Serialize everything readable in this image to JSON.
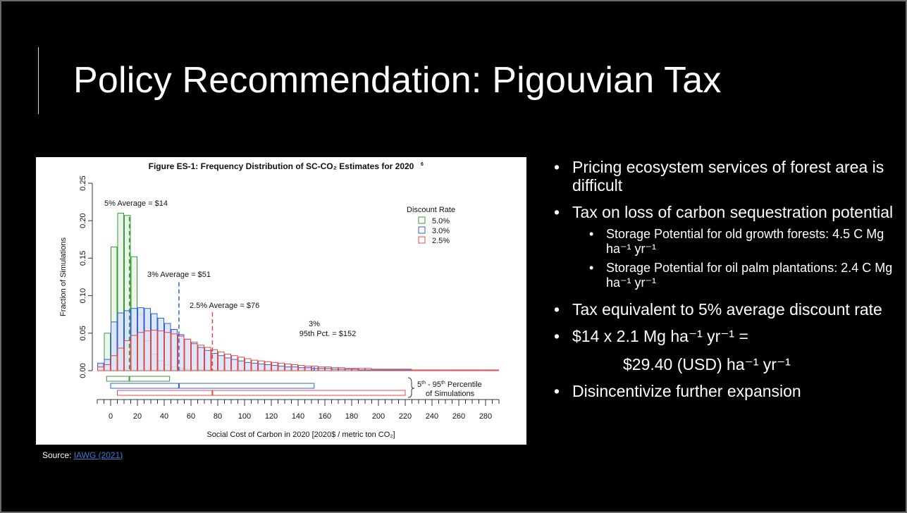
{
  "slide": {
    "title": "Policy Recommendation: Pigouvian Tax",
    "source_label": "Source: ",
    "source_link": "IAWG (2021)"
  },
  "bullets": {
    "b1": "Pricing ecosystem services of forest area is difficult",
    "b2": "Tax on loss of carbon sequestration potential",
    "b2a": "Storage Potential for old growth forests: 4.5 C Mg ha⁻¹ yr⁻¹",
    "b2b": "Storage Potential for oil palm plantations: 2.4 C  Mg ha⁻¹ yr⁻¹",
    "b3": "Tax equivalent to 5% average discount rate",
    "b4_line1": "$14 x 2.1 Mg ha⁻¹ yr⁻¹ =",
    "b4_line2": "$29.40 (USD) ha⁻¹ yr⁻¹",
    "b5": "Disincentivize further expansion"
  },
  "chart_data": {
    "type": "bar",
    "title": "Figure ES-1: Frequency Distribution of SC-CO₂ Estimates for 2020",
    "title_sup": "6",
    "xlabel": "Social Cost of Carbon in 2020 [2020$ / metric ton CO₂]",
    "ylabel": "Fraction of Simulations",
    "xlim": [
      -10,
      290
    ],
    "ylim": [
      0,
      0.25
    ],
    "x_ticks": [
      "0",
      "20",
      "40",
      "60",
      "80",
      "100",
      "120",
      "140",
      "160",
      "180",
      "200",
      "220",
      "240",
      "260",
      "280"
    ],
    "y_ticks": [
      "0.00",
      "0.05",
      "0.10",
      "0.15",
      "0.20",
      "0.25"
    ],
    "legend_title": "Discount Rate",
    "legend_position": "top-right",
    "bin_starts": [
      -10,
      -5,
      0,
      5,
      10,
      15,
      20,
      25,
      30,
      35,
      40,
      45,
      50,
      55,
      60,
      65,
      70,
      75,
      80,
      85,
      90,
      95,
      100,
      105,
      110,
      115,
      120,
      125,
      130,
      135,
      140,
      145,
      150,
      155,
      160,
      165,
      170,
      175,
      180,
      185,
      190,
      195,
      200,
      205,
      210,
      215,
      220,
      225,
      230,
      235,
      240,
      245,
      250,
      255,
      260,
      265,
      270,
      275,
      280,
      285
    ],
    "series": [
      {
        "name": "5.0%",
        "color": "#3a9a3a",
        "fill": "#e8f5e8",
        "values": [
          0.008,
          0.05,
          0.165,
          0.21,
          0.207,
          0.152,
          0.075,
          0.04,
          0.022,
          0.013,
          0.008,
          0.005,
          0.003,
          0.002,
          0.001,
          0.001,
          0.001,
          0,
          0,
          0,
          0,
          0,
          0,
          0,
          0,
          0,
          0,
          0,
          0,
          0,
          0,
          0,
          0,
          0,
          0,
          0,
          0,
          0,
          0,
          0,
          0,
          0,
          0,
          0,
          0,
          0,
          0,
          0,
          0,
          0,
          0,
          0,
          0,
          0,
          0,
          0,
          0,
          0,
          0,
          0
        ]
      },
      {
        "name": "3.0%",
        "color": "#3060d8",
        "fill": "#d8e2f8",
        "values": [
          0.01,
          0.015,
          0.065,
          0.077,
          0.08,
          0.083,
          0.084,
          0.083,
          0.076,
          0.07,
          0.063,
          0.055,
          0.048,
          0.042,
          0.036,
          0.031,
          0.027,
          0.023,
          0.02,
          0.017,
          0.015,
          0.013,
          0.011,
          0.01,
          0.009,
          0.008,
          0.007,
          0.006,
          0.005,
          0.005,
          0.004,
          0.004,
          0.003,
          0.003,
          0.003,
          0.002,
          0.002,
          0.002,
          0.002,
          0.001,
          0.001,
          0.001,
          0.001,
          0.001,
          0.001,
          0.001,
          0.001,
          0,
          0,
          0,
          0,
          0,
          0,
          0,
          0,
          0,
          0,
          0,
          0,
          0
        ]
      },
      {
        "name": "2.5%",
        "color": "#e04848",
        "fill": "none",
        "values": [
          0.005,
          0.008,
          0.02,
          0.03,
          0.04,
          0.047,
          0.051,
          0.053,
          0.054,
          0.053,
          0.051,
          0.049,
          0.046,
          0.042,
          0.038,
          0.034,
          0.031,
          0.028,
          0.025,
          0.022,
          0.02,
          0.018,
          0.016,
          0.014,
          0.013,
          0.012,
          0.011,
          0.01,
          0.009,
          0.008,
          0.007,
          0.006,
          0.006,
          0.005,
          0.005,
          0.004,
          0.004,
          0.003,
          0.003,
          0.003,
          0.003,
          0.002,
          0.002,
          0.002,
          0.002,
          0.002,
          0.002,
          0.001,
          0.001,
          0.001,
          0.001,
          0.001,
          0.001,
          0.001,
          0.001,
          0.001,
          0.001,
          0.001,
          0.001,
          0.001
        ]
      }
    ],
    "vlines": [
      {
        "x": 14,
        "color": "#3a9a3a",
        "label": "5% Average = $14"
      },
      {
        "x": 51,
        "color": "#3060d8",
        "label": "3% Average = $51"
      },
      {
        "x": 76,
        "color": "#e04848",
        "label": "2.5% Average = $76"
      },
      {
        "x": 152,
        "color": "#3060d8",
        "label_line1": "3%",
        "label_line2": "95th Pct. = $152"
      }
    ],
    "percentile_boxes": [
      {
        "series": "5.0%",
        "low": -3,
        "high": 44,
        "mark": 14,
        "color": "#3a9a3a"
      },
      {
        "series": "3.0%",
        "low": 0,
        "high": 152,
        "mark": 51,
        "color": "#3060d8"
      },
      {
        "series": "2.5%",
        "low": 5,
        "high": 220,
        "mark": 76,
        "color": "#e04848"
      }
    ],
    "percentile_label_line1": "5",
    "percentile_label_sup1": "th",
    "percentile_label_mid": " - 95",
    "percentile_label_sup2": "th",
    "percentile_label_end": " Percentile",
    "percentile_label_line2": "of Simulations"
  }
}
